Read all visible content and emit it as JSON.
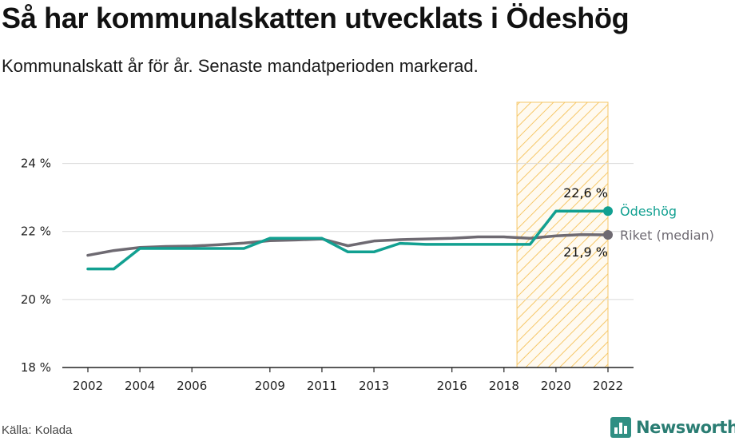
{
  "header": {
    "title": "Så har kommunalskatten utvecklats i Ödeshög",
    "subtitle": "Kommunalskatt år för år. Senaste mandatperioden markerad."
  },
  "footer": {
    "source": "Källa: Kolada",
    "brand": "Newsworthy"
  },
  "colors": {
    "odeshog": "#12a091",
    "riket": "#6e6a72",
    "highlight": "#f6c768",
    "grid": "#d9d9d9"
  },
  "chart_data": {
    "type": "line",
    "title": "Så har kommunalskatten utvecklats i Ödeshög",
    "subtitle": "Kommunalskatt år för år. Senaste mandatperioden markerad.",
    "xlabel": "",
    "ylabel": "",
    "xlim": [
      2002,
      2022
    ],
    "ylim": [
      18,
      25.8
    ],
    "y_ticks": [
      18,
      20,
      22,
      24
    ],
    "y_tick_labels": [
      "18 %",
      "20 %",
      "22 %",
      "24 %"
    ],
    "x_ticks": [
      2002,
      2004,
      2006,
      2009,
      2011,
      2013,
      2016,
      2018,
      2020,
      2022
    ],
    "x_tick_labels": [
      "2002",
      "2004",
      "2006",
      "2009",
      "2011",
      "2013",
      "2016",
      "2018",
      "2020",
      "2022"
    ],
    "grid": true,
    "highlight_period": [
      2018.5,
      2022
    ],
    "series": [
      {
        "name": "Ödeshög",
        "color": "#12a091",
        "x": [
          2002,
          2003,
          2004,
          2005,
          2006,
          2007,
          2008,
          2009,
          2010,
          2011,
          2012,
          2013,
          2014,
          2015,
          2016,
          2017,
          2018,
          2019,
          2020,
          2021,
          2022
        ],
        "y": [
          20.9,
          20.9,
          21.5,
          21.5,
          21.5,
          21.5,
          21.5,
          21.8,
          21.8,
          21.8,
          21.4,
          21.4,
          21.65,
          21.62,
          21.62,
          21.62,
          21.62,
          21.62,
          22.6,
          22.6,
          22.6
        ],
        "end_label": "22,6 %"
      },
      {
        "name": "Riket (median)",
        "color": "#6e6a72",
        "x": [
          2002,
          2003,
          2004,
          2005,
          2006,
          2007,
          2008,
          2009,
          2010,
          2011,
          2012,
          2013,
          2014,
          2015,
          2016,
          2017,
          2018,
          2019,
          2020,
          2021,
          2022
        ],
        "y": [
          21.3,
          21.44,
          21.53,
          21.56,
          21.57,
          21.61,
          21.66,
          21.73,
          21.75,
          21.78,
          21.58,
          21.72,
          21.76,
          21.78,
          21.8,
          21.84,
          21.84,
          21.8,
          21.87,
          21.91,
          21.9
        ],
        "end_label": "21,9 %"
      }
    ]
  }
}
